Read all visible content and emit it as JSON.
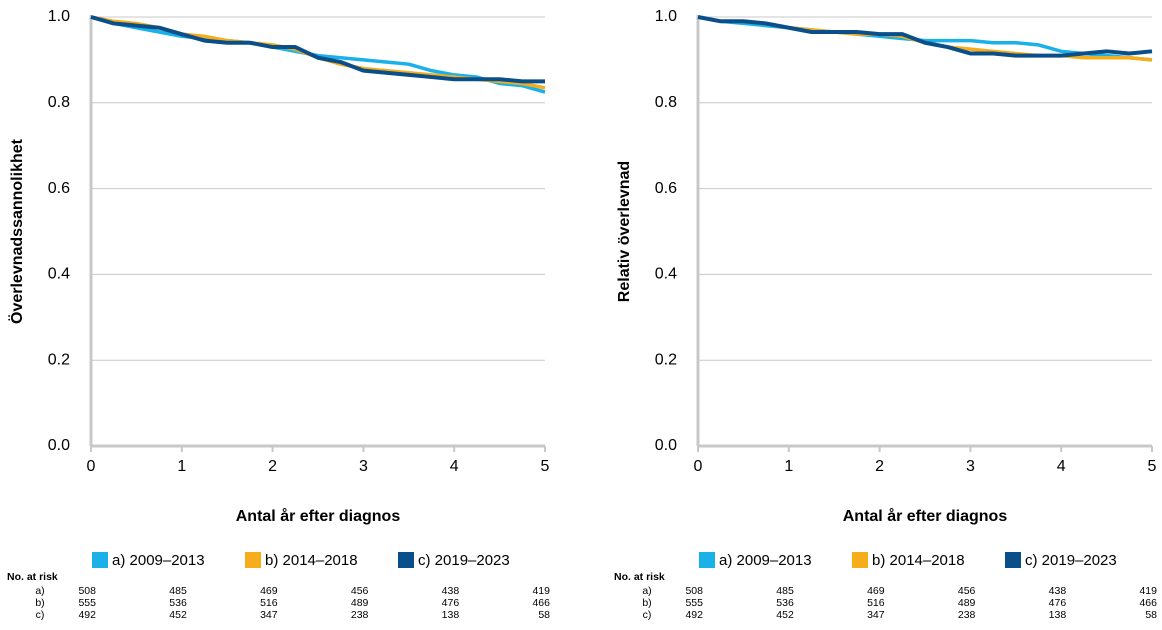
{
  "chart_data": [
    {
      "type": "line",
      "xlabel": "Antal år efter diagnos",
      "ylabel": "Överlevnadssannolikhet",
      "x": [
        0,
        0.25,
        0.5,
        0.75,
        1,
        1.25,
        1.5,
        1.75,
        2,
        2.25,
        2.5,
        2.75,
        3,
        3.25,
        3.5,
        3.75,
        4,
        4.25,
        4.5,
        4.75,
        5
      ],
      "series": [
        {
          "name": "a) 2009–2013",
          "color": "#1ab0e8",
          "values": [
            1.0,
            0.985,
            0.975,
            0.965,
            0.955,
            0.95,
            0.945,
            0.94,
            0.93,
            0.92,
            0.91,
            0.905,
            0.9,
            0.895,
            0.89,
            0.875,
            0.865,
            0.86,
            0.845,
            0.84,
            0.825
          ]
        },
        {
          "name": "b) 2014–2018",
          "color": "#f5ad1b",
          "values": [
            1.0,
            0.99,
            0.985,
            0.975,
            0.96,
            0.955,
            0.945,
            0.94,
            0.935,
            0.925,
            0.905,
            0.89,
            0.88,
            0.875,
            0.87,
            0.865,
            0.86,
            0.855,
            0.85,
            0.845,
            0.835
          ]
        },
        {
          "name": "c) 2019–2023",
          "color": "#0b4f8a",
          "values": [
            1.0,
            0.985,
            0.98,
            0.975,
            0.96,
            0.945,
            0.94,
            0.94,
            0.93,
            0.93,
            0.905,
            0.895,
            0.875,
            0.87,
            0.865,
            0.86,
            0.855,
            0.855,
            0.855,
            0.85,
            0.85
          ]
        }
      ],
      "xlim": [
        0,
        5
      ],
      "xticks": [
        0,
        1,
        2,
        3,
        4,
        5
      ],
      "ylim": [
        0,
        1
      ],
      "yticks": [
        {
          "value": 0,
          "label": "0.0"
        },
        0.2,
        0.4,
        0.6,
        0.8,
        {
          "value": 1,
          "label": "1.0"
        }
      ],
      "grid": true,
      "risk_table": {
        "title": "No. at risk",
        "rows": [
          {
            "label": "a)",
            "values": [
              508,
              485,
              469,
              456,
              438,
              419
            ]
          },
          {
            "label": "b)",
            "values": [
              555,
              536,
              516,
              489,
              476,
              466
            ]
          },
          {
            "label": "c)",
            "values": [
              492,
              452,
              347,
              238,
              138,
              58
            ]
          }
        ]
      }
    },
    {
      "type": "line",
      "xlabel": "Antal år efter diagnos",
      "ylabel": "Relativ överlevnad",
      "x": [
        0,
        0.25,
        0.5,
        0.75,
        1,
        1.25,
        1.5,
        1.75,
        2,
        2.25,
        2.5,
        2.75,
        3,
        3.25,
        3.5,
        3.75,
        4,
        4.25,
        4.5,
        4.75,
        5
      ],
      "series": [
        {
          "name": "a) 2009–2013",
          "color": "#1ab0e8",
          "values": [
            1.0,
            0.99,
            0.985,
            0.98,
            0.975,
            0.97,
            0.965,
            0.96,
            0.955,
            0.95,
            0.945,
            0.945,
            0.945,
            0.94,
            0.94,
            0.935,
            0.92,
            0.915,
            0.91,
            0.905,
            0.9
          ]
        },
        {
          "name": "b) 2014–2018",
          "color": "#f5ad1b",
          "values": [
            1.0,
            0.99,
            0.99,
            0.985,
            0.975,
            0.97,
            0.965,
            0.96,
            0.96,
            0.955,
            0.94,
            0.93,
            0.925,
            0.92,
            0.915,
            0.91,
            0.91,
            0.905,
            0.905,
            0.905,
            0.9
          ]
        },
        {
          "name": "c) 2019–2023",
          "color": "#0b4f8a",
          "values": [
            1.0,
            0.99,
            0.99,
            0.985,
            0.975,
            0.965,
            0.965,
            0.965,
            0.96,
            0.96,
            0.94,
            0.93,
            0.915,
            0.915,
            0.91,
            0.91,
            0.91,
            0.915,
            0.92,
            0.915,
            0.92
          ]
        }
      ],
      "xlim": [
        0,
        5
      ],
      "xticks": [
        0,
        1,
        2,
        3,
        4,
        5
      ],
      "ylim": [
        0,
        1
      ],
      "yticks": [
        {
          "value": 0,
          "label": "0.0"
        },
        0.2,
        0.4,
        0.6,
        0.8,
        {
          "value": 1,
          "label": "1.0"
        }
      ],
      "grid": true,
      "risk_table": {
        "title": "No. at risk",
        "rows": [
          {
            "label": "a)",
            "values": [
              508,
              485,
              469,
              456,
              438,
              419
            ]
          },
          {
            "label": "b)",
            "values": [
              555,
              536,
              516,
              489,
              476,
              466
            ]
          },
          {
            "label": "c)",
            "values": [
              492,
              452,
              347,
              238,
              138,
              58
            ]
          }
        ]
      }
    }
  ]
}
